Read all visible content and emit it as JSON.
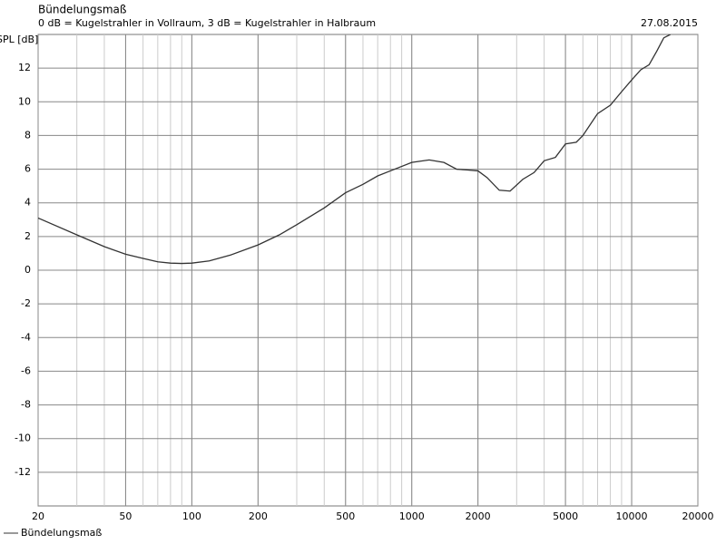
{
  "chart_data": {
    "type": "line",
    "title": "Bündelungsmaß",
    "subtitle": "0 dB = Kugelstrahler in Vollraum, 3 dB = Kugelstrahler in Halbraum",
    "date": "27.08.2015",
    "ylabel": "SPL [dB]",
    "xscale": "log",
    "grid": true,
    "x": [
      20,
      30,
      40,
      50,
      60,
      70,
      80,
      90,
      100,
      120,
      150,
      200,
      250,
      300,
      400,
      500,
      600,
      700,
      800,
      1000,
      1200,
      1400,
      1600,
      1800,
      2000,
      2200,
      2500,
      2800,
      3200,
      3600,
      4000,
      4500,
      5000,
      5600,
      6000,
      7000,
      8000,
      9000,
      10000,
      11000,
      12000,
      13000,
      14000,
      15000
    ],
    "series": [
      {
        "name": "Bündelungsmaß",
        "color": "#333333",
        "values": [
          3.1,
          2.1,
          1.4,
          0.95,
          0.7,
          0.5,
          0.42,
          0.4,
          0.42,
          0.55,
          0.9,
          1.5,
          2.1,
          2.7,
          3.7,
          4.6,
          5.1,
          5.6,
          5.9,
          6.4,
          6.55,
          6.4,
          6.0,
          5.95,
          5.9,
          5.5,
          4.75,
          4.7,
          5.4,
          5.8,
          6.5,
          6.7,
          7.5,
          7.6,
          8.0,
          9.3,
          9.8,
          10.6,
          11.3,
          11.9,
          12.2,
          13.0,
          13.8,
          14.0
        ]
      }
    ],
    "xlim": [
      20,
      20000
    ],
    "xticks": [
      20,
      50,
      100,
      200,
      500,
      1000,
      2000,
      5000,
      10000,
      20000
    ],
    "ylim": [
      -14,
      14
    ],
    "yticks": [
      -12,
      -10,
      -8,
      -6,
      -4,
      -2,
      0,
      2,
      4,
      6,
      8,
      10,
      12
    ]
  }
}
